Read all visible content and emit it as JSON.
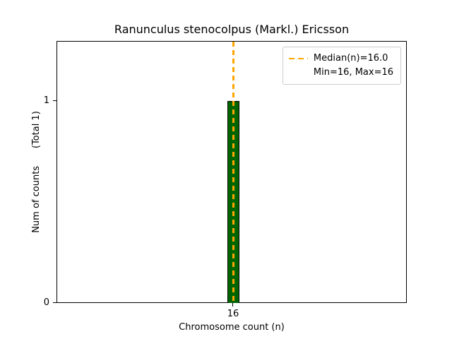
{
  "title": "Ranunculus stenocolpus (Markl.) Ericsson",
  "axes": {
    "xlabel": "Chromosome count (n)",
    "ylabel": "Num of counts      (Total 1)",
    "xticks": {
      "t16": "16"
    },
    "yticks": {
      "t0": "0",
      "t1": "1"
    }
  },
  "legend": {
    "median_label": "Median(n)=16.0",
    "minmax_label": "Min=16, Max=16"
  },
  "colors": {
    "bar_fill": "#006400",
    "bar_edge": "#000000",
    "median_line": "#FFA500"
  },
  "chart_data": {
    "type": "bar",
    "title": "Ranunculus stenocolpus (Markl.) Ericsson",
    "xlabel": "Chromosome count (n)",
    "ylabel": "Num of counts (Total 1)",
    "x": [
      16
    ],
    "values": [
      1
    ],
    "total_counts": 1,
    "bar_color": "#006400",
    "median": 16.0,
    "min": 16,
    "max": 16,
    "ylim": [
      0,
      1.3
    ],
    "yticks": [
      0,
      1
    ],
    "xticks": [
      16
    ],
    "grid": false,
    "legend_position": "upper right",
    "median_line_style": "dashed",
    "median_line_color": "#FFA500"
  }
}
